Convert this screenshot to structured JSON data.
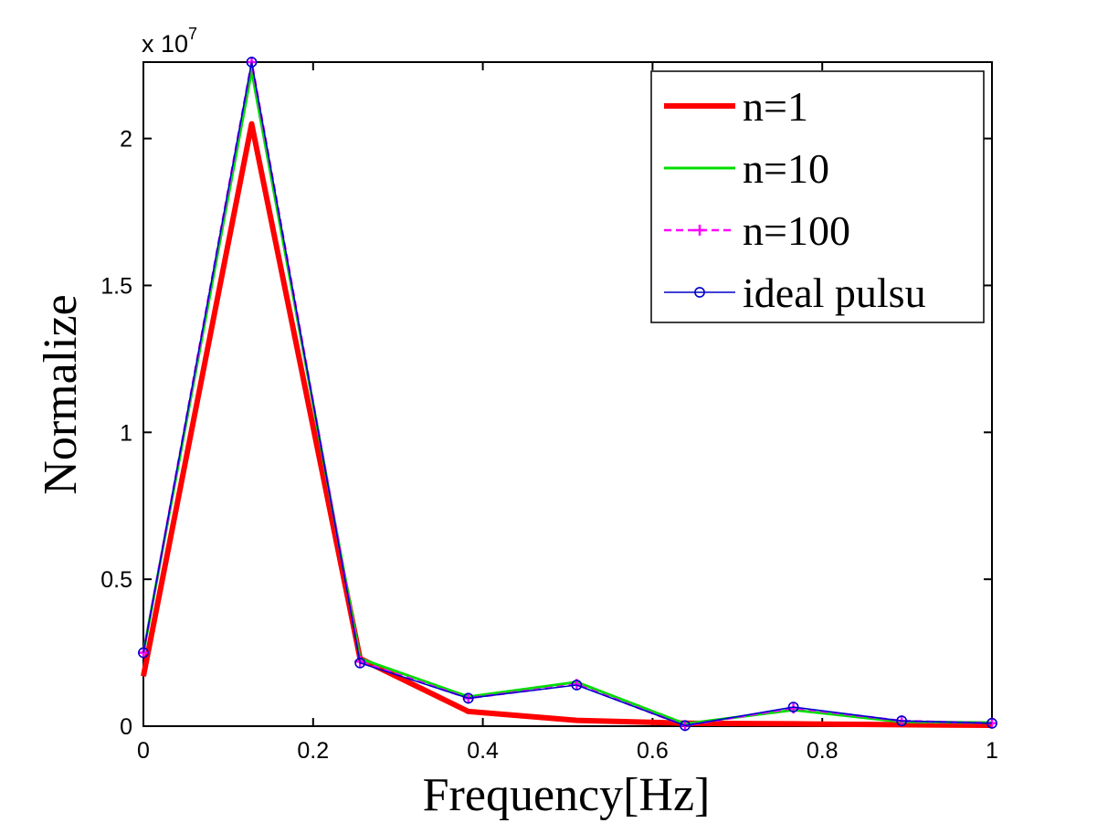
{
  "chart_data": {
    "type": "line",
    "xlabel": "Frequency[Hz]",
    "ylabel": "Normalize",
    "y_exponent_prefix": "x 10",
    "y_exponent_power": "7",
    "xlim": [
      0,
      1
    ],
    "ylim": [
      0,
      22600000
    ],
    "x_ticks": [
      0,
      0.2,
      0.4,
      0.6,
      0.8,
      1
    ],
    "x_tick_labels": [
      "0",
      "0.2",
      "0.4",
      "0.6",
      "0.8",
      "1"
    ],
    "y_ticks": [
      0,
      5000000,
      10000000,
      15000000,
      20000000
    ],
    "y_tick_labels": [
      "0",
      "0.5",
      "1",
      "1.5",
      "2"
    ],
    "grid": false,
    "legend_position": "top-right",
    "x": [
      0,
      0.1276,
      0.2553,
      0.3829,
      0.5106,
      0.6383,
      0.766,
      0.8936,
      1.0
    ],
    "series": [
      {
        "name": "n=1",
        "color": "#ff0000",
        "style": "thick-solid",
        "values": [
          1700000,
          20500000,
          2300000,
          500000,
          200000,
          100000,
          80000,
          50000,
          30000
        ]
      },
      {
        "name": "n=10",
        "color": "#00dd00",
        "style": "solid",
        "values": [
          2500000,
          22300000,
          2300000,
          1000000,
          1500000,
          80000,
          550000,
          150000,
          120000
        ]
      },
      {
        "name": "n=100",
        "color": "#ff00ff",
        "style": "dashed-plus",
        "values": [
          2500000,
          22600000,
          2200000,
          950000,
          1420000,
          20000,
          620000,
          180000,
          100000
        ]
      },
      {
        "name": "ideal pulsu",
        "color": "#0000cc",
        "style": "solid-circle",
        "values": [
          2500000,
          22600000,
          2150000,
          950000,
          1400000,
          20000,
          650000,
          180000,
          100000
        ]
      }
    ]
  }
}
